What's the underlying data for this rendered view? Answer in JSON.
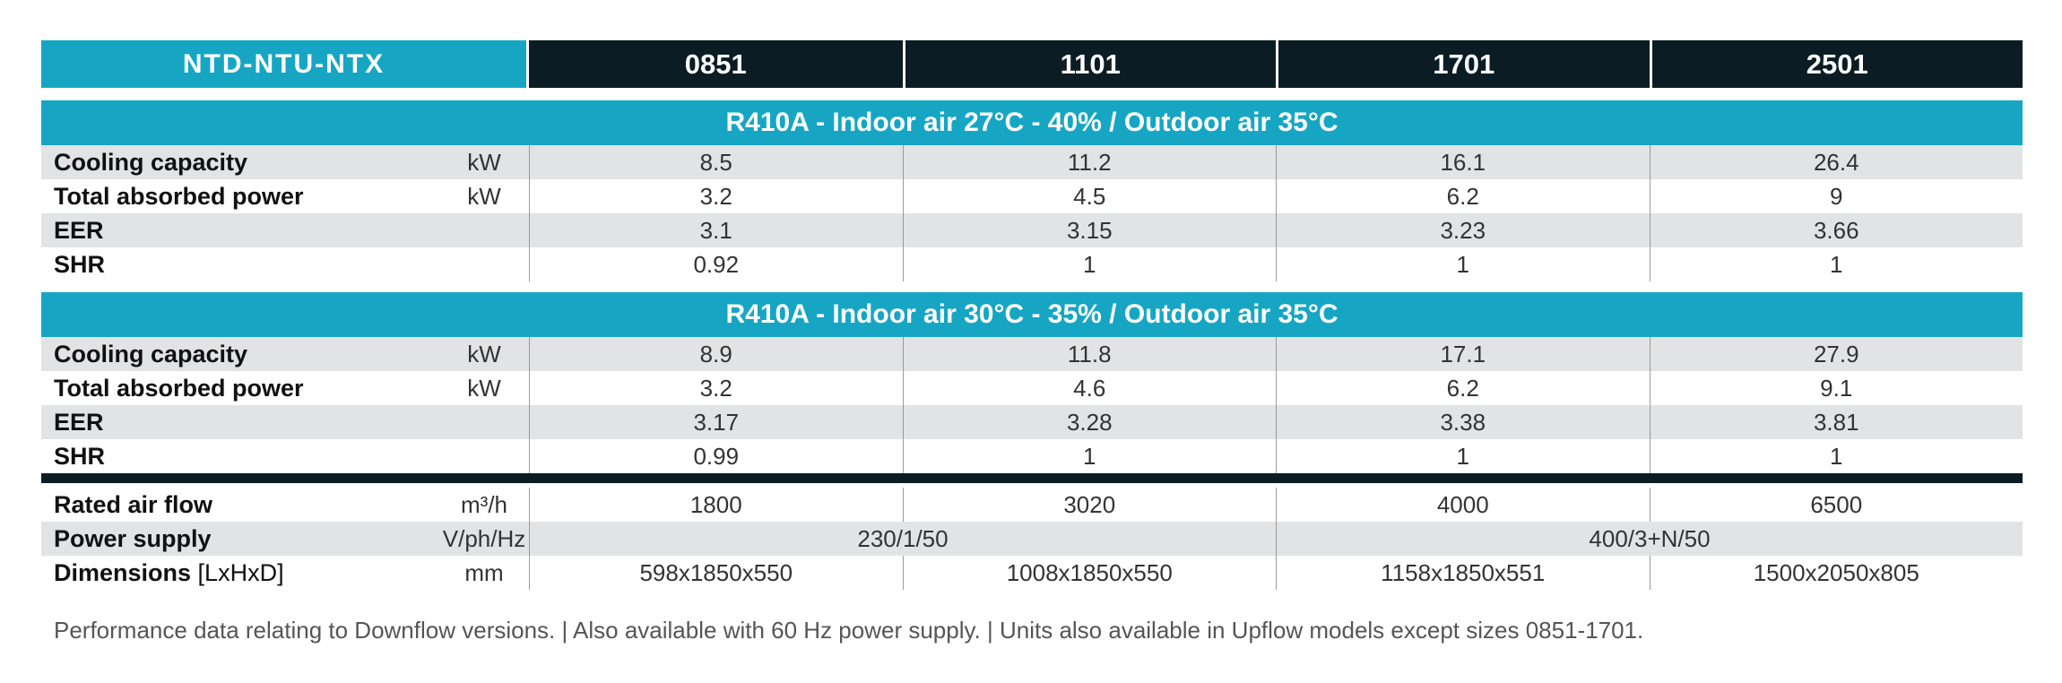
{
  "header": {
    "series": "NTD-NTU-NTX",
    "models": [
      "0851",
      "1101",
      "1701",
      "2501"
    ]
  },
  "sections": [
    {
      "title": "R410A - Indoor air 27°C -  40% / Outdoor air 35°C",
      "rows": [
        {
          "label": "Cooling capacity",
          "unit": "kW",
          "values": [
            "8.5",
            "11.2",
            "16.1",
            "26.4"
          ]
        },
        {
          "label": "Total absorbed power",
          "unit": "kW",
          "values": [
            "3.2",
            "4.5",
            "6.2",
            "9"
          ]
        },
        {
          "label": "EER",
          "unit": "",
          "values": [
            "3.1",
            "3.15",
            "3.23",
            "3.66"
          ]
        },
        {
          "label": "SHR",
          "unit": "",
          "values": [
            "0.92",
            "1",
            "1",
            "1"
          ]
        }
      ]
    },
    {
      "title": "R410A - Indoor air 30°C -  35% / Outdoor air 35°C",
      "rows": [
        {
          "label": "Cooling capacity",
          "unit": "kW",
          "values": [
            "8.9",
            "11.8",
            "17.1",
            "27.9"
          ]
        },
        {
          "label": "Total absorbed power",
          "unit": "kW",
          "values": [
            "3.2",
            "4.6",
            "6.2",
            "9.1"
          ]
        },
        {
          "label": "EER",
          "unit": "",
          "values": [
            "3.17",
            "3.28",
            "3.38",
            "3.81"
          ]
        },
        {
          "label": "SHR",
          "unit": "",
          "values": [
            "0.99",
            "1",
            "1",
            "1"
          ]
        }
      ]
    }
  ],
  "general": {
    "airflow": {
      "label": "Rated air flow",
      "unit": "m³/h",
      "values": [
        "1800",
        "3020",
        "4000",
        "6500"
      ]
    },
    "power_supply": {
      "label": "Power supply",
      "unit": "V/ph/Hz",
      "values": [
        "230/1/50",
        "400/3+N/50"
      ]
    },
    "dimensions": {
      "label": "Dimensions",
      "label_suffix": " [LxHxD]",
      "unit": "mm",
      "values": [
        "598x1850x550",
        "1008x1850x550",
        "1158x1850x551",
        "1500x2050x805"
      ]
    }
  },
  "footnote": "Performance data relating to Downflow versions. | Also available with 60 Hz power supply. | Units also available in Upflow models except sizes 0851-1701."
}
